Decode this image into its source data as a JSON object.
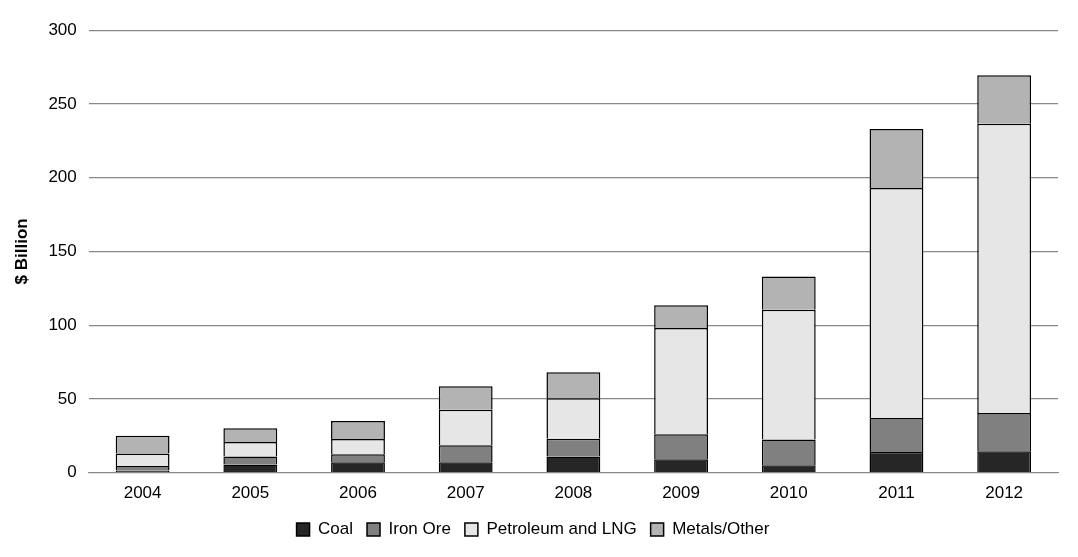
{
  "chart_data": {
    "type": "bar",
    "stacked": true,
    "ylabel": "$ Billion",
    "categories": [
      "2004",
      "2005",
      "2006",
      "2007",
      "2008",
      "2009",
      "2010",
      "2011",
      "2012"
    ],
    "series": [
      {
        "name": "Coal",
        "color": "#262626",
        "values": [
          1.5,
          5.5,
          7,
          7,
          11,
          9,
          5,
          14,
          14.5
        ]
      },
      {
        "name": "Iron Ore",
        "color": "#808080",
        "values": [
          3,
          5.5,
          5.4,
          11.6,
          12,
          17,
          17.5,
          23,
          26
        ]
      },
      {
        "name": "Petroleum and LNG",
        "color": "#e6e6e6",
        "values": [
          8.5,
          9.7,
          10.4,
          24,
          27.5,
          72,
          88,
          156,
          196
        ]
      },
      {
        "name": "Metals/Other",
        "color": "#b3b3b3",
        "values": [
          12,
          9.3,
          12.2,
          16,
          17.5,
          15.5,
          22.5,
          40,
          33
        ]
      }
    ],
    "ylim": [
      0,
      300
    ],
    "yticks": [
      0,
      50,
      100,
      150,
      200,
      250,
      300
    ],
    "grid": "y",
    "legend": "bottom"
  }
}
